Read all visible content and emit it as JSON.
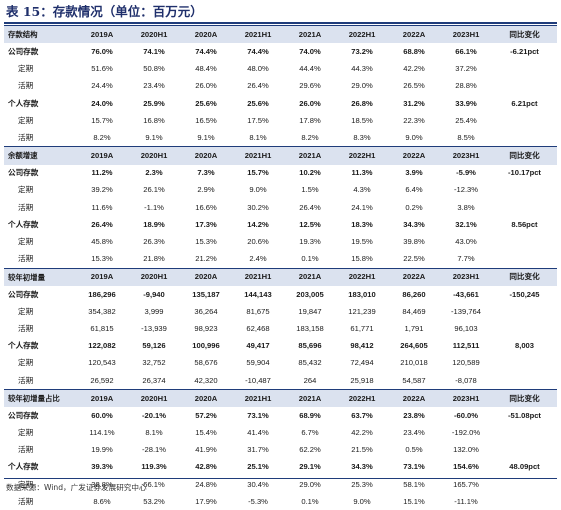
{
  "title": "表 15：存款情况（单位：百万元）",
  "source": "数据来源：Wind，广发证券发展研究中心",
  "columns": [
    "2019A",
    "2020H1",
    "2020A",
    "2021H1",
    "2021A",
    "2022H1",
    "2022A",
    "2023H1",
    "同比变化"
  ],
  "sections": [
    {
      "header": "存款结构",
      "rows": [
        {
          "label": "公司存款",
          "bold": true,
          "values": [
            "76.0%",
            "74.1%",
            "74.4%",
            "74.4%",
            "74.0%",
            "73.2%",
            "68.8%",
            "66.1%"
          ],
          "change": "-6.21pct"
        },
        {
          "label": "定期",
          "bold": false,
          "values": [
            "51.6%",
            "50.8%",
            "48.4%",
            "48.0%",
            "44.4%",
            "44.3%",
            "42.2%",
            "37.2%"
          ],
          "change": ""
        },
        {
          "label": "活期",
          "bold": false,
          "values": [
            "24.4%",
            "23.4%",
            "26.0%",
            "26.4%",
            "29.6%",
            "29.0%",
            "26.5%",
            "28.8%"
          ],
          "change": ""
        },
        {
          "label": "个人存款",
          "bold": true,
          "values": [
            "24.0%",
            "25.9%",
            "25.6%",
            "25.6%",
            "26.0%",
            "26.8%",
            "31.2%",
            "33.9%"
          ],
          "change": "6.21pct"
        },
        {
          "label": "定期",
          "bold": false,
          "values": [
            "15.7%",
            "16.8%",
            "16.5%",
            "17.5%",
            "17.8%",
            "18.5%",
            "22.3%",
            "25.4%"
          ],
          "change": ""
        },
        {
          "label": "活期",
          "bold": false,
          "values": [
            "8.2%",
            "9.1%",
            "9.1%",
            "8.1%",
            "8.2%",
            "8.3%",
            "9.0%",
            "8.5%"
          ],
          "change": ""
        }
      ]
    },
    {
      "header": "余额增速",
      "rows": [
        {
          "label": "公司存款",
          "bold": true,
          "values": [
            "11.2%",
            "2.3%",
            "7.3%",
            "15.7%",
            "10.2%",
            "11.3%",
            "3.9%",
            "-5.9%"
          ],
          "change": "-10.17pct"
        },
        {
          "label": "定期",
          "bold": false,
          "values": [
            "39.2%",
            "26.1%",
            "2.9%",
            "9.0%",
            "1.5%",
            "4.3%",
            "6.4%",
            "-12.3%"
          ],
          "change": ""
        },
        {
          "label": "活期",
          "bold": false,
          "values": [
            "11.6%",
            "-1.1%",
            "16.6%",
            "30.2%",
            "26.4%",
            "24.1%",
            "0.2%",
            "3.8%"
          ],
          "change": ""
        },
        {
          "label": "个人存款",
          "bold": true,
          "values": [
            "26.4%",
            "18.9%",
            "17.3%",
            "14.2%",
            "12.5%",
            "18.3%",
            "34.3%",
            "32.1%"
          ],
          "change": "8.56pct"
        },
        {
          "label": "定期",
          "bold": false,
          "values": [
            "45.8%",
            "26.3%",
            "15.3%",
            "20.6%",
            "19.3%",
            "19.5%",
            "39.8%",
            "43.0%"
          ],
          "change": ""
        },
        {
          "label": "活期",
          "bold": false,
          "values": [
            "15.3%",
            "21.8%",
            "21.2%",
            "2.4%",
            "0.1%",
            "15.8%",
            "22.5%",
            "7.7%"
          ],
          "change": ""
        }
      ]
    },
    {
      "header": "较年初增量",
      "rows": [
        {
          "label": "公司存款",
          "bold": true,
          "values": [
            "186,296",
            "-9,940",
            "135,187",
            "144,143",
            "203,005",
            "183,010",
            "86,260",
            "-43,661"
          ],
          "change": "-150,245"
        },
        {
          "label": "定期",
          "bold": false,
          "values": [
            "354,382",
            "3,999",
            "36,264",
            "81,675",
            "19,847",
            "121,239",
            "84,469",
            "-139,764"
          ],
          "change": ""
        },
        {
          "label": "活期",
          "bold": false,
          "values": [
            "61,815",
            "-13,939",
            "98,923",
            "62,468",
            "183,158",
            "61,771",
            "1,791",
            "96,103"
          ],
          "change": ""
        },
        {
          "label": "个人存款",
          "bold": true,
          "values": [
            "122,082",
            "59,126",
            "100,996",
            "49,417",
            "85,696",
            "98,412",
            "264,605",
            "112,511"
          ],
          "change": "8,003"
        },
        {
          "label": "定期",
          "bold": false,
          "values": [
            "120,543",
            "32,752",
            "58,676",
            "59,904",
            "85,432",
            "72,494",
            "210,018",
            "120,589"
          ],
          "change": ""
        },
        {
          "label": "活期",
          "bold": false,
          "values": [
            "26,592",
            "26,374",
            "42,320",
            "-10,487",
            "264",
            "25,918",
            "54,587",
            "-8,078"
          ],
          "change": ""
        }
      ]
    },
    {
      "header": "较年初增量占比",
      "rows": [
        {
          "label": "公司存款",
          "bold": true,
          "values": [
            "60.0%",
            "-20.1%",
            "57.2%",
            "73.1%",
            "68.9%",
            "63.7%",
            "23.8%",
            "-60.0%"
          ],
          "change": "-51.08pct"
        },
        {
          "label": "定期",
          "bold": false,
          "values": [
            "114.1%",
            "8.1%",
            "15.4%",
            "41.4%",
            "6.7%",
            "42.2%",
            "23.4%",
            "-192.0%"
          ],
          "change": ""
        },
        {
          "label": "活期",
          "bold": false,
          "values": [
            "19.9%",
            "-28.1%",
            "41.9%",
            "31.7%",
            "62.2%",
            "21.5%",
            "0.5%",
            "132.0%"
          ],
          "change": ""
        },
        {
          "label": "个人存款",
          "bold": true,
          "values": [
            "39.3%",
            "119.3%",
            "42.8%",
            "25.1%",
            "29.1%",
            "34.3%",
            "73.1%",
            "154.6%"
          ],
          "change": "48.09pct"
        },
        {
          "label": "定期",
          "bold": false,
          "values": [
            "38.8%",
            "66.1%",
            "24.8%",
            "30.4%",
            "29.0%",
            "25.3%",
            "58.1%",
            "165.7%"
          ],
          "change": ""
        },
        {
          "label": "活期",
          "bold": false,
          "values": [
            "8.6%",
            "53.2%",
            "17.9%",
            "-5.3%",
            "0.1%",
            "9.0%",
            "15.1%",
            "-11.1%"
          ],
          "change": ""
        }
      ]
    }
  ]
}
